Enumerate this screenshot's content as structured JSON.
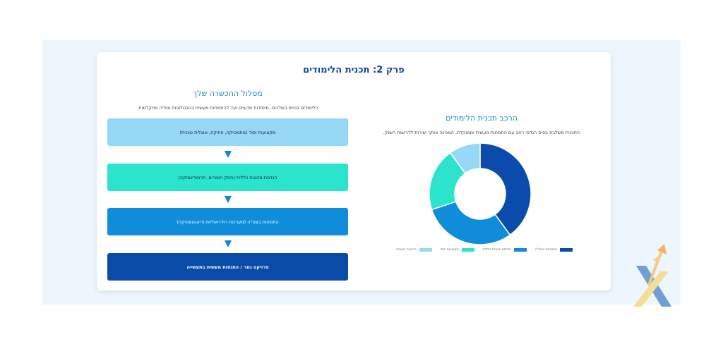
{
  "page": {
    "title": "פרק 2: תכנית הלימודים"
  },
  "flow": {
    "title": "מסלול ההכשרה שלך",
    "subtitle": "הלימודים בנויים בשלבים, מיסודות מדעיים ועד להתמחות מעשית בטכנולוגיות צמ\"ה מתקדמות.",
    "steps": [
      {
        "label": "מקצועות יסוד (מתמטיקה, פיזיקה, אנגלית טכנית)"
      },
      {
        "label": "הנדסת מכונות כללית (חוזק חומרים, תרמודינמיקה)"
      },
      {
        "label": "התמחות בצמ\"ה (מערכות הידראוליות ודיאגנוסטיקה)"
      },
      {
        "label": "פרויקט גמר / התנסות מעשית בתעשייה"
      }
    ]
  },
  "chart_section": {
    "title": "הרכב תכנית הלימודים",
    "description": "התכנית משלבת בסיס הנדסי רחב עם התמחות מעשית וממוקדת, המכינה אותך ישירות לדרישות השוק."
  },
  "chart_data": {
    "type": "pie",
    "donut": true,
    "series": [
      {
        "name": "התמחות בצמ\"ה",
        "value": 40,
        "color": "#0b4bab"
      },
      {
        "name": "הנדסת מכונות כללית",
        "value": 30,
        "color": "#0f8ddb"
      },
      {
        "name": "מקצועות יסוד",
        "value": 20,
        "color": "#2ce4cc"
      },
      {
        "name": "הכשרה מעשית",
        "value": 10,
        "color": "#97d8f6"
      }
    ],
    "legend_position": "bottom"
  },
  "icons": {
    "flow_arrow": "arrow-down-icon",
    "logo": "brand-logo-icon"
  }
}
